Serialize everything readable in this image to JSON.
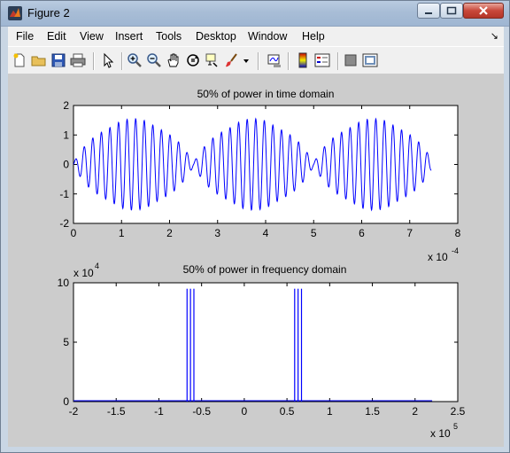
{
  "window": {
    "title": "Figure 2"
  },
  "menu": [
    "File",
    "Edit",
    "View",
    "Insert",
    "Tools",
    "Desktop",
    "Window",
    "Help"
  ],
  "menu_arrow": "↘",
  "toolbar_icons": [
    "new-figure-icon",
    "open-file-icon",
    "save-icon",
    "print-icon",
    "pointer-icon",
    "zoom-in-icon",
    "zoom-out-icon",
    "pan-icon",
    "rotate-3d-icon",
    "data-cursor-icon",
    "brush-icon",
    "link-plot-icon",
    "colorbar-icon",
    "legend-icon",
    "hide-plot-tools-icon",
    "show-plot-tools-icon"
  ],
  "chart_data": [
    {
      "type": "line",
      "title": "50% of power in time domain",
      "xlabel": "",
      "ylabel": "",
      "xlim": [
        0,
        8
      ],
      "ylim": [
        -2,
        2
      ],
      "xticks": [
        "0",
        "1",
        "2",
        "3",
        "4",
        "5",
        "6",
        "7",
        "8"
      ],
      "yticks": [
        "2",
        "1",
        "0",
        "-1",
        "-2"
      ],
      "x_exponent": "x 10",
      "x_exponent_power": "-4",
      "color": "#0000ff",
      "signal": {
        "x_start": 0,
        "x_end": 7.45,
        "points": 1400,
        "carrier_cycles_per_unit": 5.6,
        "envelope_period": 2.5,
        "envelope_peak": 1.55,
        "envelope_min": 0.08,
        "secondary_bumps": 0.35
      },
      "grid": false
    },
    {
      "type": "line",
      "title": "50% of power in frequency domain",
      "xlabel": "",
      "ylabel": "",
      "xlim": [
        -2,
        2.5
      ],
      "ylim": [
        0,
        10
      ],
      "xticks": [
        "-2",
        "-1.5",
        "-1",
        "-0.5",
        "0",
        "0.5",
        "1",
        "1.5",
        "2",
        "2.5"
      ],
      "yticks": [
        "10",
        "5",
        "0"
      ],
      "x_exponent": "x 10",
      "x_exponent_power": "5",
      "y_exponent": "x 10",
      "y_exponent_power": "4",
      "color": "#0000ff",
      "x": [
        -0.67,
        -0.63,
        -0.59,
        0.59,
        0.63,
        0.67
      ],
      "values": [
        9.5,
        9.5,
        9.5,
        9.5,
        9.5,
        9.5
      ],
      "grid": false
    }
  ]
}
